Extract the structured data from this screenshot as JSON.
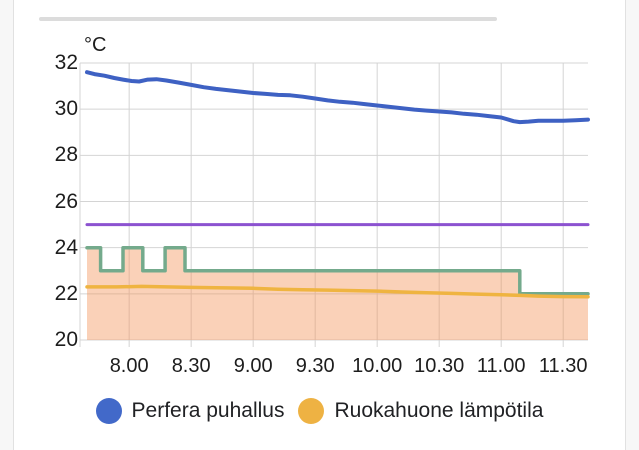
{
  "chart_data": {
    "type": "line",
    "unit_label": "°C",
    "ylim": [
      20,
      32
    ],
    "xlim": [
      7.66,
      11.7
    ],
    "grid": true,
    "y_ticks": [
      32,
      30,
      28,
      26,
      24,
      22,
      20
    ],
    "x_ticks": [
      {
        "label": "8.00",
        "value": 8.0
      },
      {
        "label": "8.30",
        "value": 8.5
      },
      {
        "label": "9.00",
        "value": 9.0
      },
      {
        "label": "9.30",
        "value": 9.5
      },
      {
        "label": "10.00",
        "value": 10.0
      },
      {
        "label": "10.30",
        "value": 10.5
      },
      {
        "label": "11.00",
        "value": 11.0
      },
      {
        "label": "11.30",
        "value": 11.5
      }
    ],
    "series": [
      {
        "name": "setpoint-steps",
        "label": "",
        "color": "#74aa8c",
        "width": 3.5,
        "fill": "rgba(243,146,85,0.42)",
        "points": [
          [
            7.66,
            24
          ],
          [
            7.77,
            24
          ],
          [
            7.77,
            23
          ],
          [
            7.95,
            23
          ],
          [
            7.95,
            24
          ],
          [
            8.11,
            24
          ],
          [
            8.11,
            23
          ],
          [
            8.29,
            23
          ],
          [
            8.29,
            24
          ],
          [
            8.45,
            24
          ],
          [
            8.45,
            23
          ],
          [
            11.15,
            23
          ],
          [
            11.15,
            22
          ],
          [
            11.7,
            22
          ]
        ]
      },
      {
        "name": "limit-line-25",
        "label": "",
        "color": "#8c52d0",
        "width": 3,
        "points": [
          [
            7.66,
            25
          ],
          [
            11.7,
            25
          ]
        ]
      },
      {
        "name": "ruokahuone-lampotila",
        "label": "Ruokahuone lämpötila",
        "color": "#efb441",
        "width": 3.5,
        "points": [
          [
            7.66,
            22.3
          ],
          [
            7.9,
            22.3
          ],
          [
            8.1,
            22.32
          ],
          [
            8.3,
            22.3
          ],
          [
            8.5,
            22.28
          ],
          [
            8.7,
            22.26
          ],
          [
            9.0,
            22.24
          ],
          [
            9.2,
            22.2
          ],
          [
            9.4,
            22.18
          ],
          [
            9.6,
            22.16
          ],
          [
            9.8,
            22.14
          ],
          [
            10.0,
            22.12
          ],
          [
            10.2,
            22.08
          ],
          [
            10.4,
            22.05
          ],
          [
            10.6,
            22.02
          ],
          [
            10.8,
            21.99
          ],
          [
            11.0,
            21.96
          ],
          [
            11.15,
            21.93
          ],
          [
            11.3,
            21.9
          ],
          [
            11.5,
            21.88
          ],
          [
            11.7,
            21.87
          ]
        ]
      },
      {
        "name": "perfera-puhallus",
        "label": "Perfera puhallus",
        "color": "#3e61c3",
        "width": 4,
        "points": [
          [
            7.66,
            31.6
          ],
          [
            7.72,
            31.52
          ],
          [
            7.8,
            31.45
          ],
          [
            7.88,
            31.35
          ],
          [
            7.95,
            31.28
          ],
          [
            8.02,
            31.22
          ],
          [
            8.08,
            31.2
          ],
          [
            8.15,
            31.28
          ],
          [
            8.22,
            31.3
          ],
          [
            8.3,
            31.24
          ],
          [
            8.4,
            31.15
          ],
          [
            8.5,
            31.05
          ],
          [
            8.6,
            30.95
          ],
          [
            8.7,
            30.88
          ],
          [
            8.8,
            30.82
          ],
          [
            8.9,
            30.76
          ],
          [
            9.0,
            30.7
          ],
          [
            9.1,
            30.66
          ],
          [
            9.2,
            30.62
          ],
          [
            9.3,
            30.6
          ],
          [
            9.4,
            30.54
          ],
          [
            9.5,
            30.46
          ],
          [
            9.6,
            30.38
          ],
          [
            9.7,
            30.32
          ],
          [
            9.8,
            30.28
          ],
          [
            9.9,
            30.22
          ],
          [
            10.0,
            30.16
          ],
          [
            10.1,
            30.1
          ],
          [
            10.2,
            30.04
          ],
          [
            10.3,
            29.98
          ],
          [
            10.4,
            29.94
          ],
          [
            10.5,
            29.9
          ],
          [
            10.6,
            29.86
          ],
          [
            10.7,
            29.8
          ],
          [
            10.8,
            29.76
          ],
          [
            10.9,
            29.7
          ],
          [
            11.0,
            29.64
          ],
          [
            11.05,
            29.56
          ],
          [
            11.1,
            29.48
          ],
          [
            11.15,
            29.44
          ],
          [
            11.22,
            29.46
          ],
          [
            11.3,
            29.5
          ],
          [
            11.4,
            29.5
          ],
          [
            11.5,
            29.5
          ],
          [
            11.6,
            29.52
          ],
          [
            11.7,
            29.55
          ]
        ]
      }
    ],
    "legend_position": "bottom",
    "grid_color": "#d4d4d4"
  },
  "legend": {
    "items": [
      {
        "label": "Perfera puhallus",
        "color": "#4269c9"
      },
      {
        "label": "Ruokahuone lämpötila",
        "color": "#eeb243"
      }
    ]
  }
}
